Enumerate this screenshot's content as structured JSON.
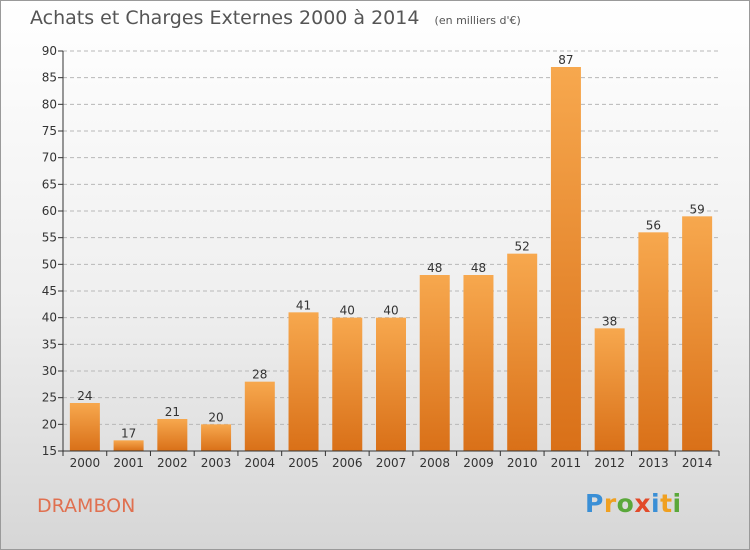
{
  "title": "Achats et Charges Externes 2000 à 2014",
  "subtitle": "(en milliers d'€)",
  "commune": "DRAMBON",
  "logo": {
    "text": "Proxiti",
    "letters": [
      {
        "ch": "P",
        "color": "#3a8fd6"
      },
      {
        "ch": "r",
        "color": "#f0a020"
      },
      {
        "ch": "o",
        "color": "#5aa83a"
      },
      {
        "ch": "x",
        "color": "#e24a2a"
      },
      {
        "ch": "i",
        "color": "#3a8fd6"
      },
      {
        "ch": "t",
        "color": "#f0a020"
      },
      {
        "ch": "i",
        "color": "#5aa83a"
      }
    ]
  },
  "colors": {
    "bar_top": "#f7a84e",
    "bar_bottom": "#d97018",
    "axis": "#333333",
    "grid": "#b8b8b8"
  },
  "chart_data": {
    "type": "bar",
    "categories": [
      "2000",
      "2001",
      "2002",
      "2003",
      "2004",
      "2005",
      "2006",
      "2007",
      "2008",
      "2009",
      "2010",
      "2011",
      "2012",
      "2013",
      "2014"
    ],
    "values": [
      24,
      17,
      21,
      20,
      28,
      41,
      40,
      40,
      48,
      48,
      52,
      87,
      38,
      56,
      59
    ],
    "title": "Achats et Charges Externes 2000 à 2014",
    "subtitle": "(en milliers d'€)",
    "xlabel": "",
    "ylabel": "",
    "ylim": [
      15,
      90
    ],
    "yticks": [
      15,
      20,
      25,
      30,
      35,
      40,
      45,
      50,
      55,
      60,
      65,
      70,
      75,
      80,
      85,
      90
    ],
    "grid": "horizontal dashed",
    "data_labels": true
  }
}
